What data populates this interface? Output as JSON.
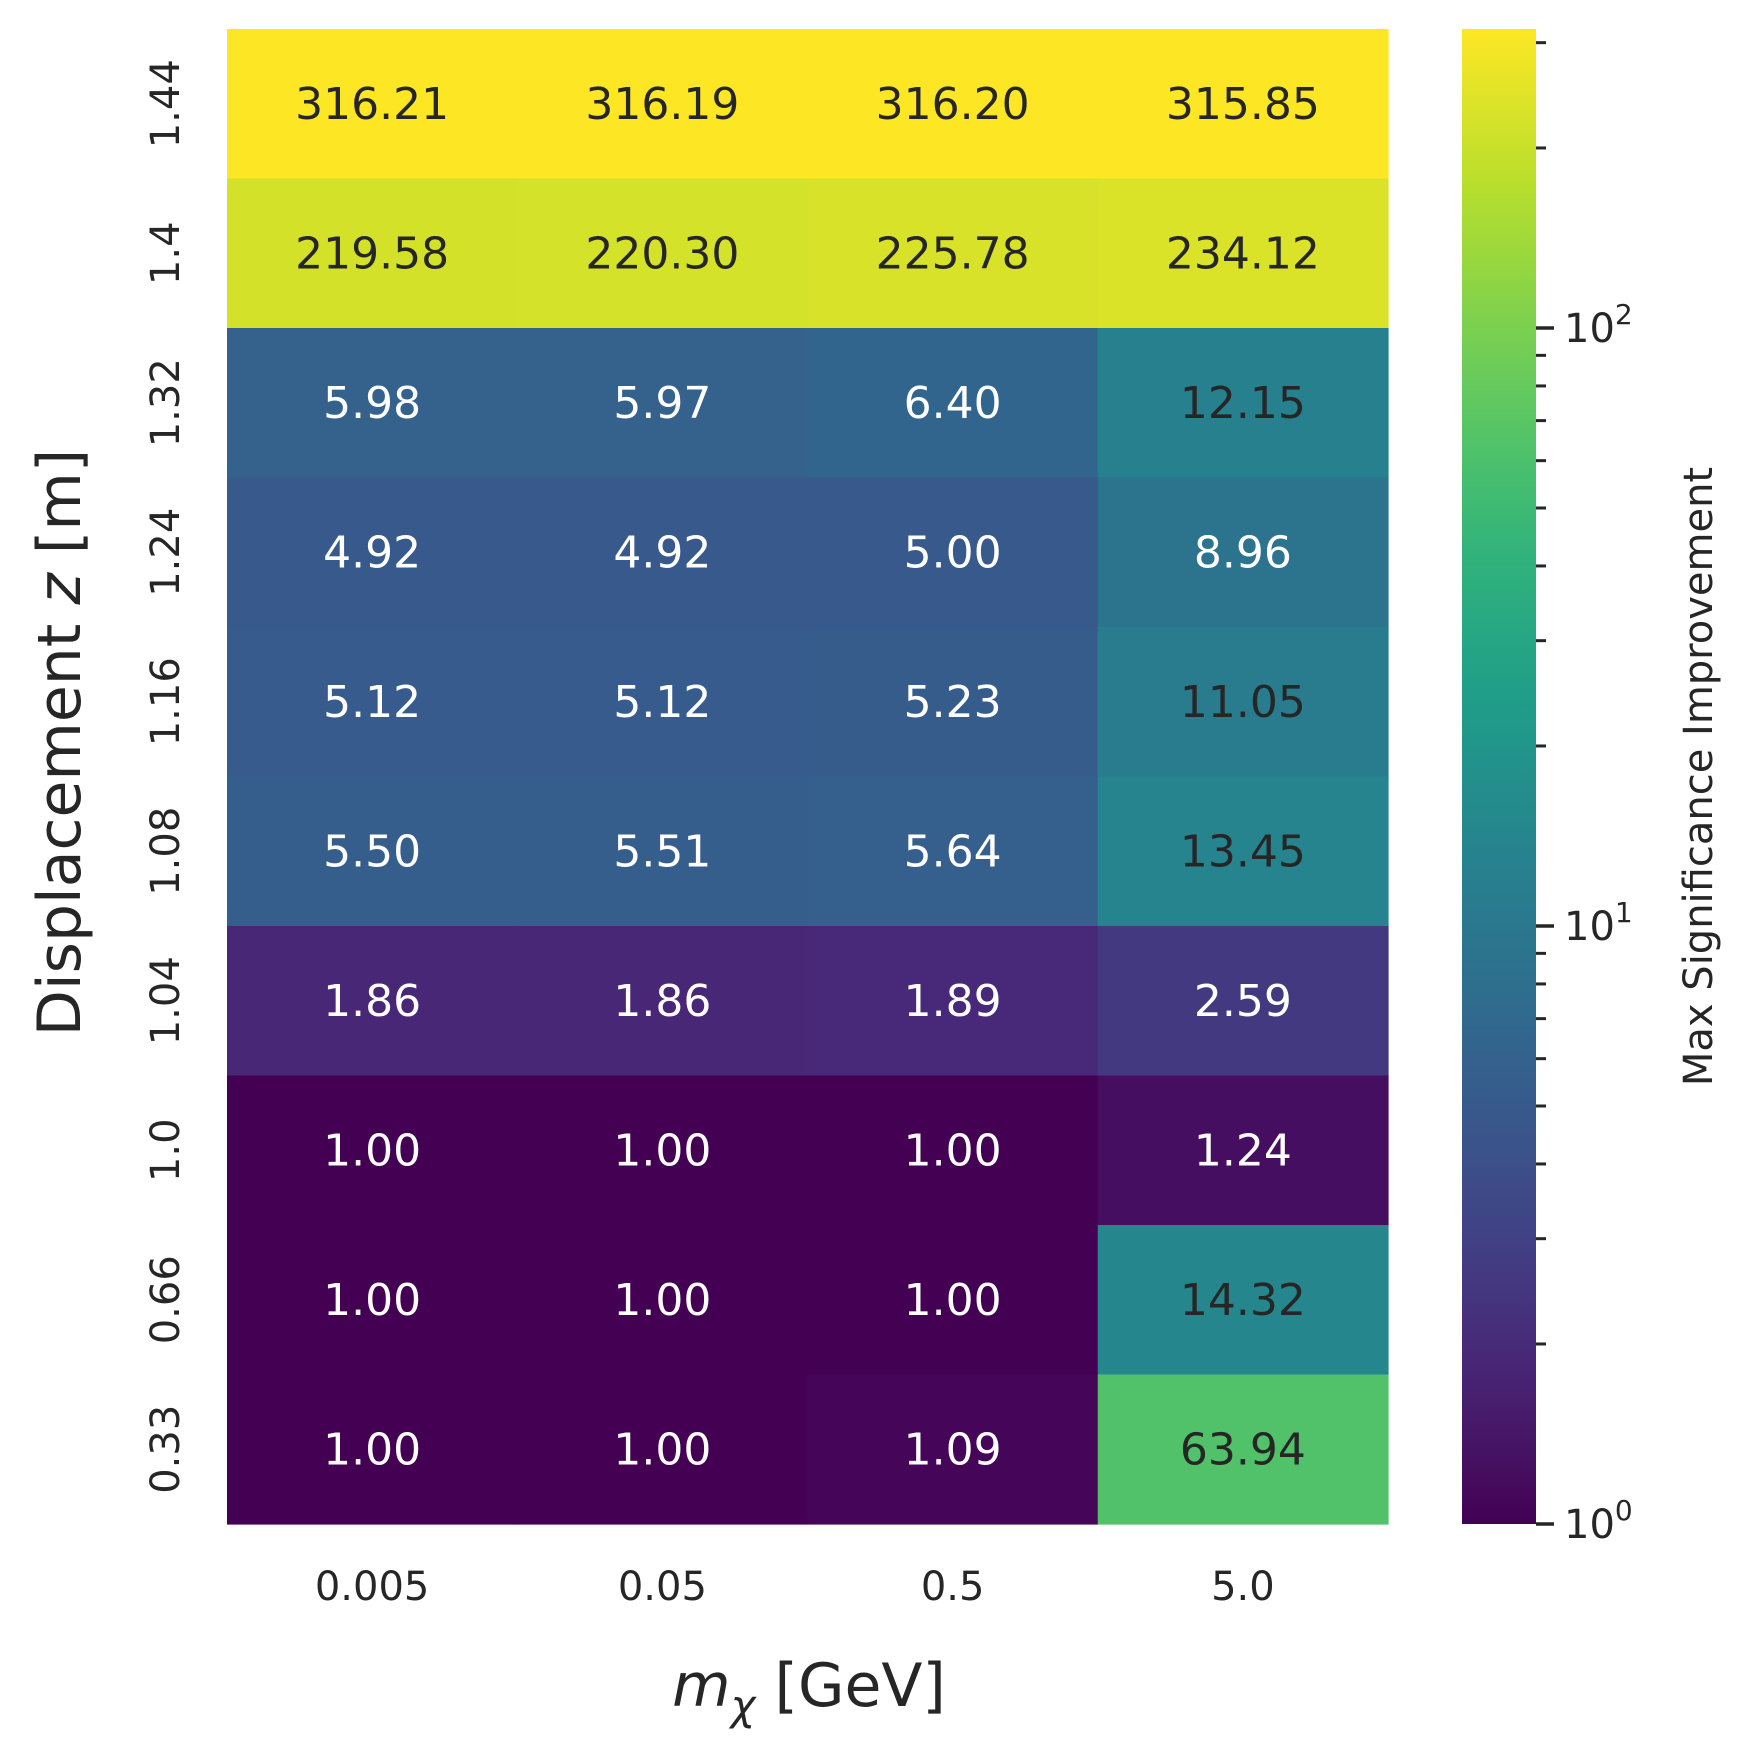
{
  "chart_data": {
    "type": "heatmap",
    "x_label": "m_χ [GeV]",
    "x_label_parts": {
      "var": "m",
      "sub": "χ",
      "unit": " [GeV]"
    },
    "y_label": "Displacement z [m]",
    "y_label_parts": {
      "pre": "Displacement ",
      "var": "z",
      "post": " [m]"
    },
    "x_categories": [
      "0.005",
      "0.05",
      "0.5",
      "5.0"
    ],
    "y_categories": [
      "1.44",
      "1.4",
      "1.32",
      "1.24",
      "1.16",
      "1.08",
      "1.04",
      "1.0",
      "0.66",
      "0.33"
    ],
    "values": [
      [
        316.21,
        316.19,
        316.2,
        315.85
      ],
      [
        219.58,
        220.3,
        225.78,
        234.12
      ],
      [
        5.98,
        5.97,
        6.4,
        12.15
      ],
      [
        4.92,
        4.92,
        5.0,
        8.96
      ],
      [
        5.12,
        5.12,
        5.23,
        11.05
      ],
      [
        5.5,
        5.51,
        5.64,
        13.45
      ],
      [
        1.86,
        1.86,
        1.89,
        2.59
      ],
      [
        1.0,
        1.0,
        1.0,
        1.24
      ],
      [
        1.0,
        1.0,
        1.0,
        14.32
      ],
      [
        1.0,
        1.0,
        1.09,
        63.94
      ]
    ],
    "value_format": "2 decimals",
    "colormap": "viridis",
    "color_scale": "log",
    "vmin": 1.0,
    "vmax": 316.21,
    "colorbar": {
      "label": "Max Significance Improvement",
      "major_ticks": [
        {
          "value": 1,
          "base": "10",
          "exp": "0"
        },
        {
          "value": 10,
          "base": "10",
          "exp": "1"
        },
        {
          "value": 100,
          "base": "10",
          "exp": "2"
        }
      ],
      "minor_ticks": [
        2,
        3,
        4,
        5,
        6,
        7,
        8,
        9,
        20,
        30,
        40,
        50,
        60,
        70,
        80,
        90,
        200,
        300
      ]
    },
    "text_colors": {
      "light": "#ffffff",
      "dark": "#262626"
    }
  }
}
